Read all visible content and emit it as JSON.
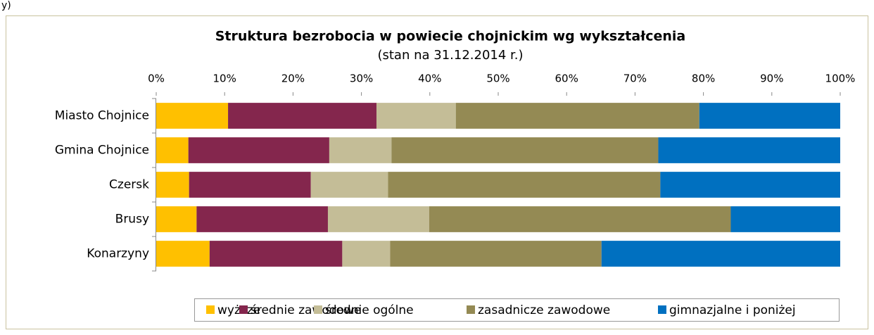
{
  "caption_fragment": "y)",
  "chart_data": {
    "type": "stacked-bar-horizontal",
    "title": "Struktura bezrobocia w powiecie chojnickim wg wykształcenia",
    "subtitle": "(stan na 31.12.2014 r.)",
    "categories": [
      "Miasto Chojnice",
      "Gmina Chojnice",
      "Czersk",
      "Brusy",
      "Konarzyny"
    ],
    "series": [
      {
        "name": "wyższe",
        "color": "#ffc000",
        "values": [
          10.5,
          4.7,
          4.8,
          5.9,
          7.8
        ]
      },
      {
        "name": "średnie zawodowe",
        "color": "#84264d",
        "values": [
          21.7,
          20.6,
          17.8,
          19.2,
          19.4
        ]
      },
      {
        "name": "średnie ogólne",
        "color": "#c4bd97",
        "values": [
          11.6,
          9.1,
          11.3,
          14.8,
          7.0
        ]
      },
      {
        "name": "zasadnicze zawodowe",
        "color": "#948a54",
        "values": [
          35.6,
          39.0,
          39.8,
          44.1,
          30.9
        ]
      },
      {
        "name": "gimnazjalne i poniżej",
        "color": "#0070c0",
        "values": [
          20.6,
          26.6,
          26.3,
          16.0,
          34.9
        ]
      }
    ],
    "xlim": [
      0,
      100
    ],
    "xticks": [
      {
        "value": 0,
        "label": "0%"
      },
      {
        "value": 10,
        "label": "10%"
      },
      {
        "value": 20,
        "label": "20%"
      },
      {
        "value": 30,
        "label": "30%"
      },
      {
        "value": 40,
        "label": "40%"
      },
      {
        "value": 50,
        "label": "50%"
      },
      {
        "value": 60,
        "label": "60%"
      },
      {
        "value": 70,
        "label": "70%"
      },
      {
        "value": 80,
        "label": "80%"
      },
      {
        "value": 90,
        "label": "90%"
      },
      {
        "value": 100,
        "label": "100%"
      }
    ],
    "legend": "bottom"
  }
}
